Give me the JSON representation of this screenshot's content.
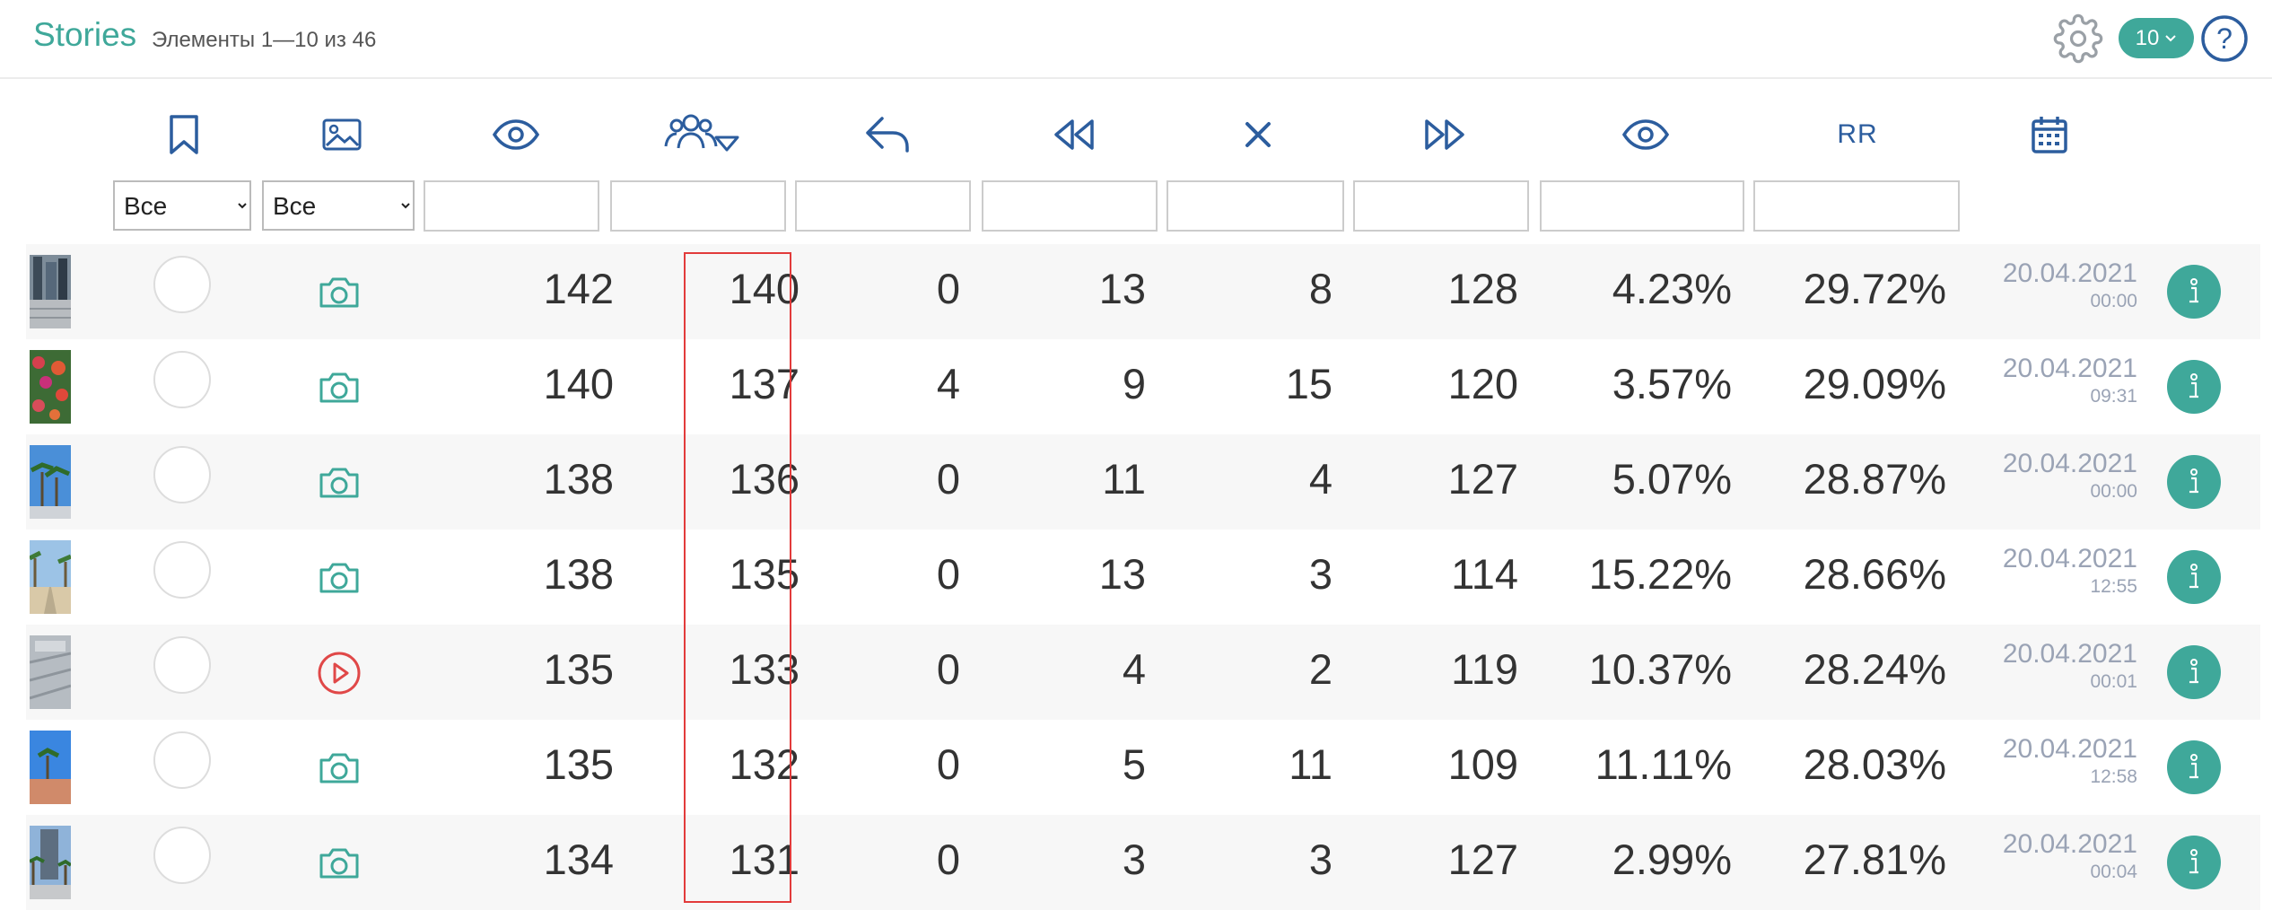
{
  "header": {
    "title": "Stories",
    "subtitle": "Элементы 1—10 из 46",
    "per_page": "10"
  },
  "filters": {
    "select_1": "Все",
    "select_2": "Все",
    "options": [
      "Все"
    ]
  },
  "rows": [
    {
      "thumb": "city",
      "type": "photo",
      "c1": "142",
      "c2": "140",
      "c3": "0",
      "c4": "13",
      "c5": "8",
      "c6": "128",
      "c7": "4.23%",
      "c8": "29.72%",
      "date": "20.04.2021",
      "time": "00:00"
    },
    {
      "thumb": "flowers",
      "type": "photo",
      "c1": "140",
      "c2": "137",
      "c3": "4",
      "c4": "9",
      "c5": "15",
      "c6": "120",
      "c7": "3.57%",
      "c8": "29.09%",
      "date": "20.04.2021",
      "time": "09:31"
    },
    {
      "thumb": "palm",
      "type": "photo",
      "c1": "138",
      "c2": "136",
      "c3": "0",
      "c4": "11",
      "c5": "4",
      "c6": "127",
      "c7": "5.07%",
      "c8": "28.87%",
      "date": "20.04.2021",
      "time": "00:00"
    },
    {
      "thumb": "street",
      "type": "photo",
      "c1": "138",
      "c2": "135",
      "c3": "0",
      "c4": "13",
      "c5": "3",
      "c6": "114",
      "c7": "15.22%",
      "c8": "28.66%",
      "date": "20.04.2021",
      "time": "12:55"
    },
    {
      "thumb": "gray",
      "type": "video",
      "c1": "135",
      "c2": "133",
      "c3": "0",
      "c4": "4",
      "c5": "2",
      "c6": "119",
      "c7": "10.37%",
      "c8": "28.24%",
      "date": "20.04.2021",
      "time": "00:01"
    },
    {
      "thumb": "sky",
      "type": "photo",
      "c1": "135",
      "c2": "132",
      "c3": "0",
      "c4": "5",
      "c5": "11",
      "c6": "109",
      "c7": "11.11%",
      "c8": "28.03%",
      "date": "20.04.2021",
      "time": "12:58"
    },
    {
      "thumb": "tower",
      "type": "photo",
      "c1": "134",
      "c2": "131",
      "c3": "0",
      "c4": "3",
      "c5": "3",
      "c6": "127",
      "c7": "2.99%",
      "c8": "27.81%",
      "date": "20.04.2021",
      "time": "00:04"
    }
  ],
  "columns": {
    "rr_label": "RR",
    "icons": [
      "bookmark-icon",
      "image-icon",
      "eye-icon",
      "users-filter-icon",
      "reply-icon",
      "rewind-icon",
      "close-icon",
      "fast-forward-icon",
      "eye-icon",
      "rr-label",
      "calendar-icon"
    ]
  },
  "colors": {
    "accent": "#3fa89a",
    "icon_blue": "#2c5d9e",
    "video_red": "#e04848",
    "highlight": "#e23b3b"
  }
}
